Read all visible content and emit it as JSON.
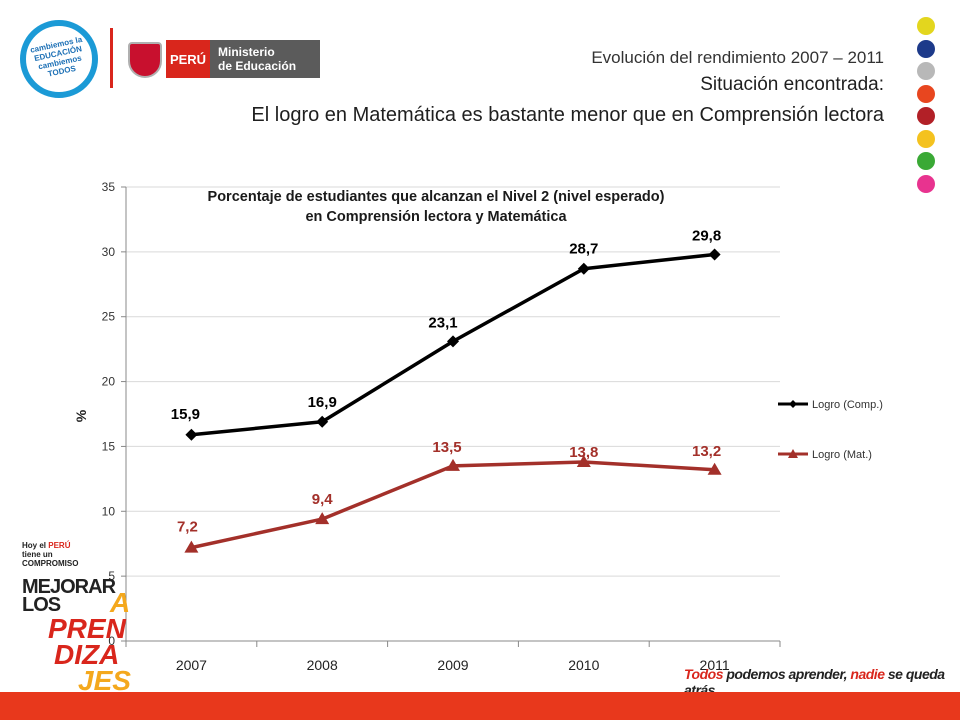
{
  "header": {
    "subtitle": "Evolución del rendimiento 2007 – 2011",
    "situation": "Situación encontrada:",
    "headline": "El logro en Matemática es bastante menor que en Comprensión lectora"
  },
  "logos": {
    "campaign": "cambiemos la EDUCACIÓN cambiemos TODOS",
    "country": "PERÚ",
    "ministry_line1": "Ministerio",
    "ministry_line2": "de Educación",
    "brand_line1": "Hoy el",
    "brand_country": "PERÚ",
    "brand_line2": "tiene un",
    "brand_line3": "COMPROMISO",
    "mejorar": "MEJORAR",
    "los": "LOS",
    "aprendizajes_1": "A",
    "aprendizajes_2": "PREN",
    "aprendizajes_3": "DIZA",
    "aprendizajes_4": "JES",
    "tagline_1": "Todos",
    "tagline_2": " podemos aprender, ",
    "tagline_3": "nadie",
    "tagline_4": " se queda atrás"
  },
  "decoration": {
    "dot_colors": [
      "#e3d61e",
      "#1d3a8a",
      "#b8b8b8",
      "#e8461f",
      "#b22027",
      "#f4c21f",
      "#3aa935",
      "#e8338f"
    ],
    "bar_color": "#e8381c"
  },
  "chart_data": {
    "type": "line",
    "title_line1": "Porcentaje de estudiantes que alcanzan el Nivel 2 (nivel esperado)",
    "title_line2": "en Comprensión lectora y Matemática",
    "ylabel": "%",
    "xlabel": "",
    "ylim": [
      0,
      35
    ],
    "yticks": [
      "0",
      "5",
      "10",
      "15",
      "20",
      "25",
      "30",
      "35"
    ],
    "categories": [
      "2007",
      "2008",
      "2009",
      "2010",
      "2011"
    ],
    "grid": "horizontal",
    "legend_position": "right",
    "series": [
      {
        "name": "Logro (Comp.)",
        "values": [
          15.9,
          16.9,
          23.1,
          28.7,
          29.8
        ],
        "labels": [
          "15,9",
          "16,9",
          "23,1",
          "28,7",
          "29,8"
        ],
        "color": "#000000",
        "marker": "diamond"
      },
      {
        "name": "Logro (Mat.)",
        "values": [
          7.2,
          9.4,
          13.5,
          13.8,
          13.2
        ],
        "labels": [
          "7,2",
          "9,4",
          "13,5",
          "13,8",
          "13,2"
        ],
        "color": "#a3302a",
        "marker": "triangle"
      }
    ]
  }
}
